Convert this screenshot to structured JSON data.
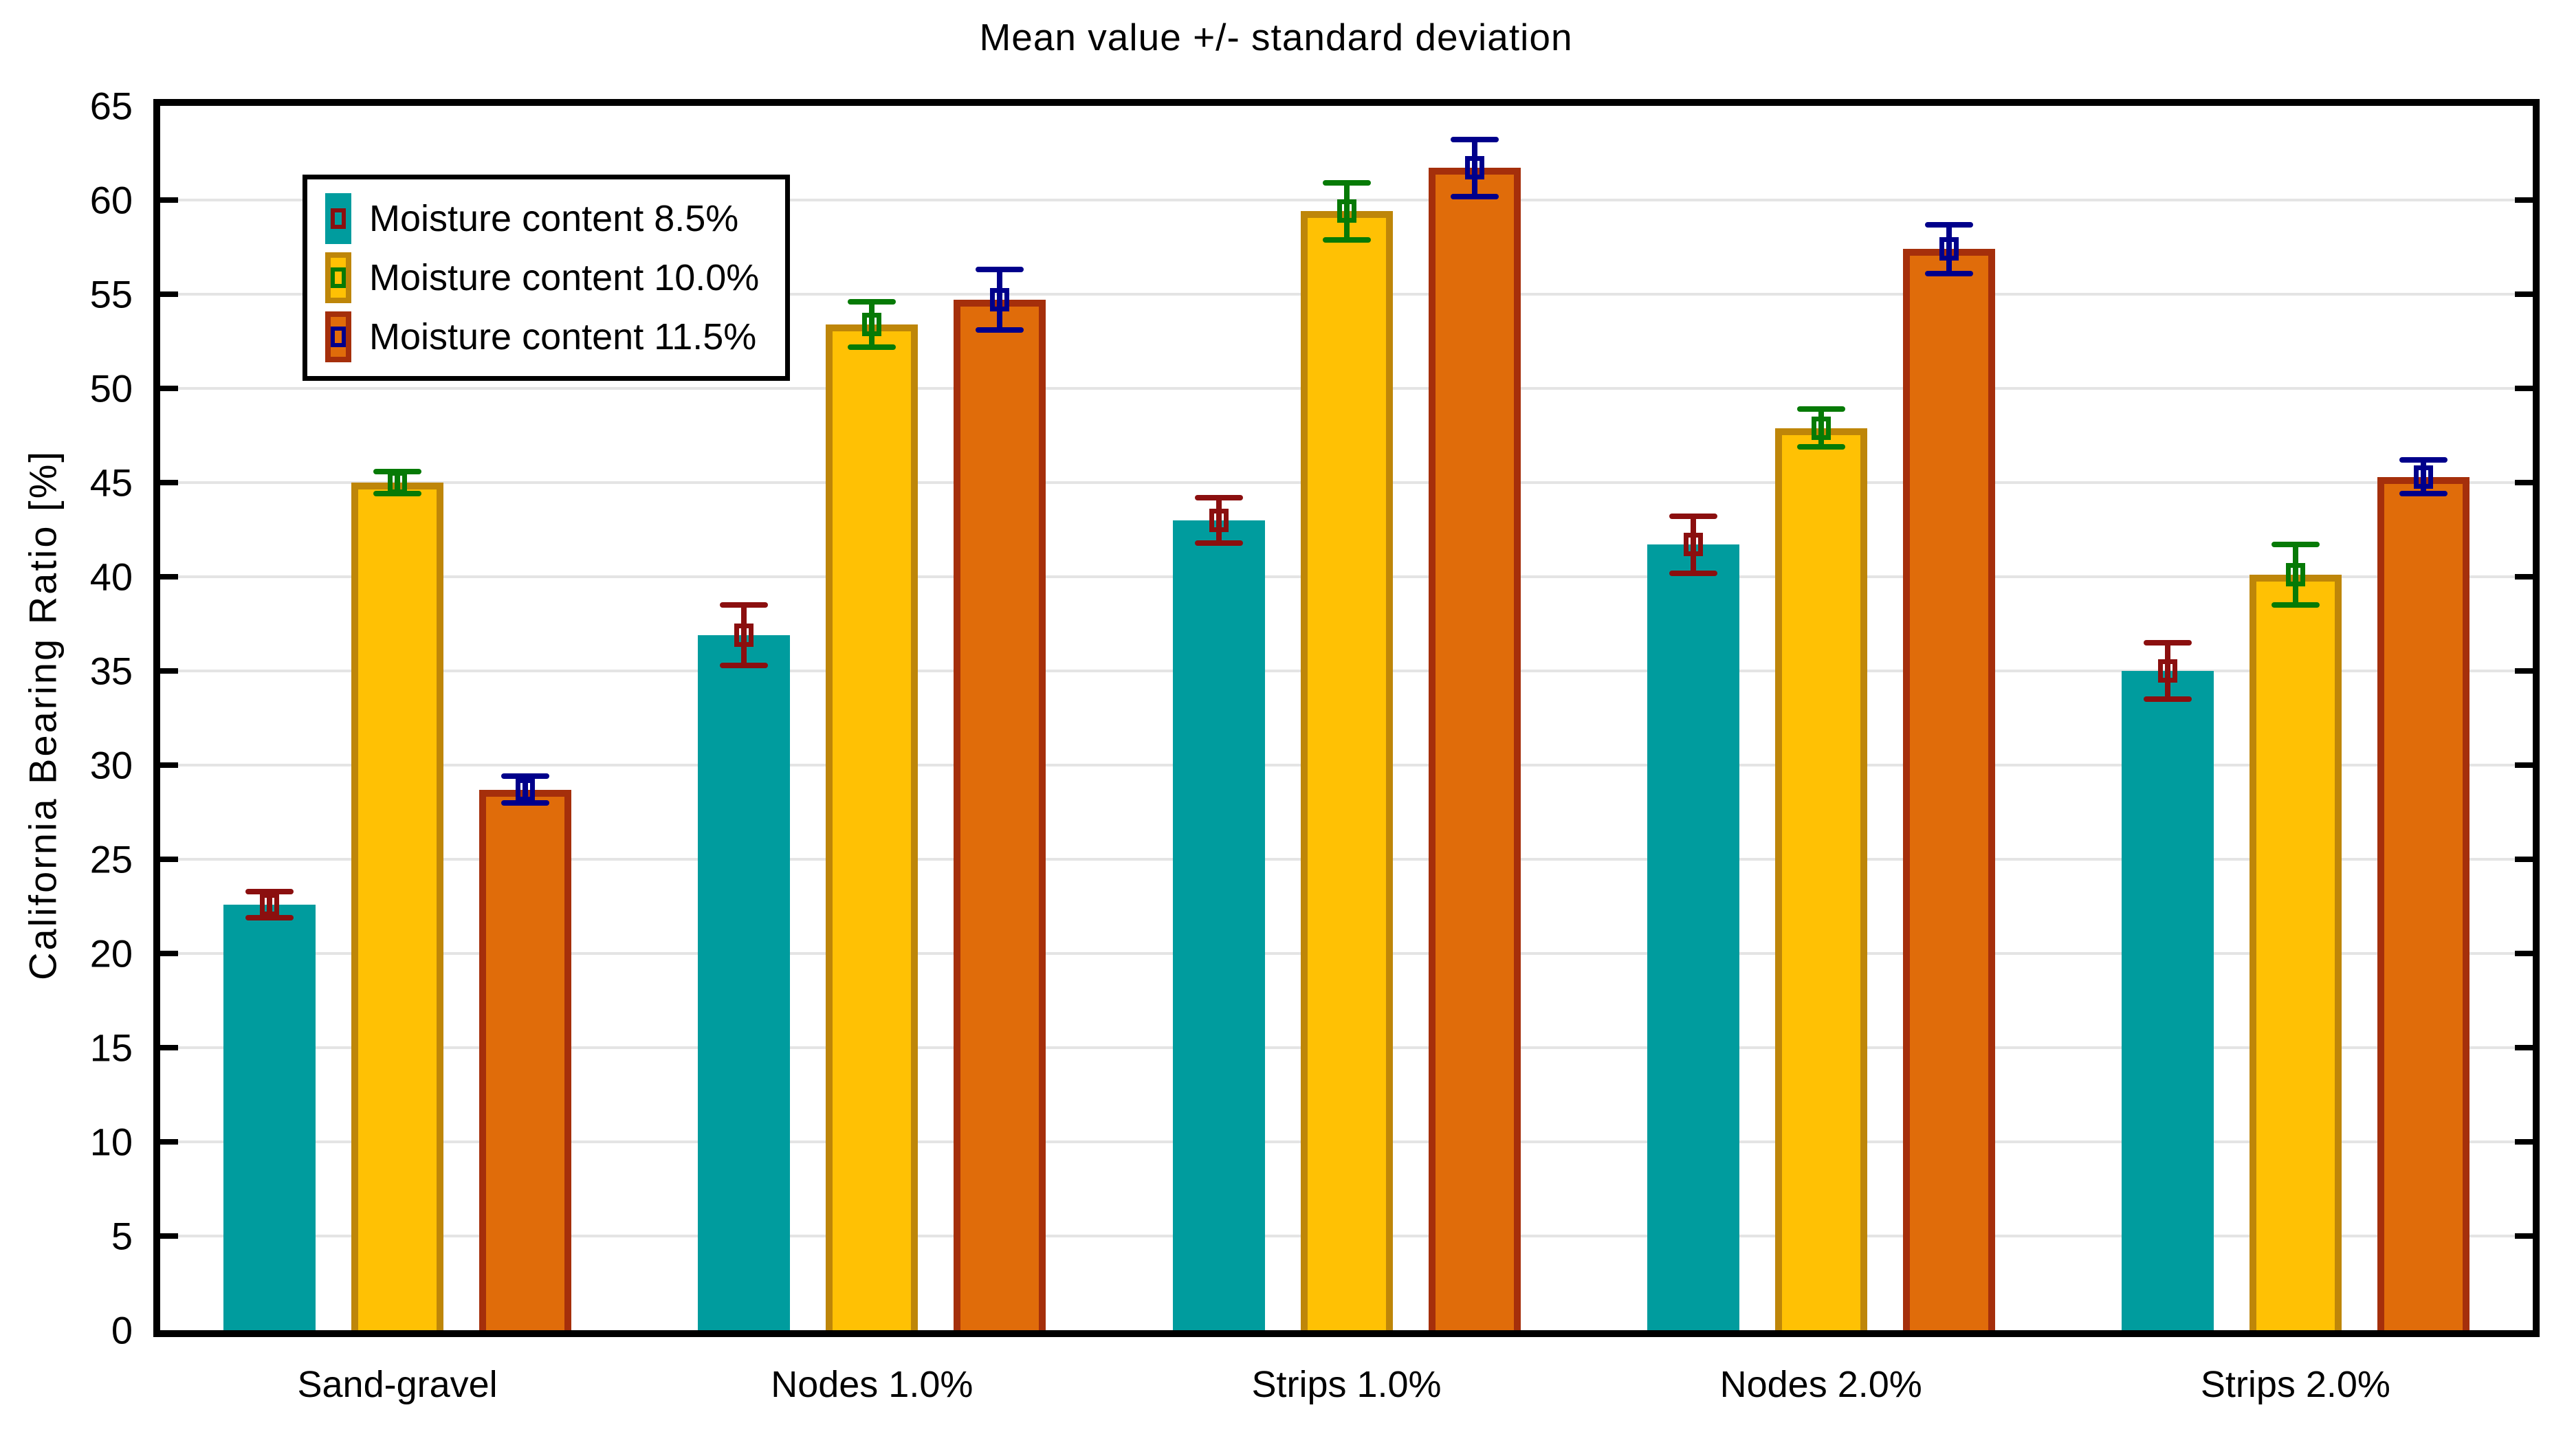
{
  "chart_data": {
    "type": "bar",
    "title": "Mean value +/- standard deviation",
    "ylabel": "California Bearing Ratio  [%]",
    "ylim": [
      0,
      65
    ],
    "ytick_step": 5,
    "grid": true,
    "legend_position": "top-left-inside",
    "categories": [
      "Sand-gravel",
      "Nodes 1.0%",
      "Strips 1.0%",
      "Nodes 2.0%",
      "Strips 2.0%"
    ],
    "series": [
      {
        "name": "Moisture content 8.5%",
        "values": [
          22.6,
          36.9,
          43.0,
          41.7,
          35.0
        ],
        "sd": [
          0.7,
          1.6,
          1.2,
          1.5,
          1.5
        ],
        "bar_fill": "#009C9E",
        "bar_border": "#009C9E",
        "error_color": "#8B0F0F"
      },
      {
        "name": "Moisture content 10.0%",
        "values": [
          45.0,
          53.4,
          59.4,
          47.9,
          40.1
        ],
        "sd": [
          0.6,
          1.2,
          1.5,
          1.0,
          1.6
        ],
        "bar_fill": "#FFC104",
        "bar_border": "#BE8609",
        "error_color": "#067A06"
      },
      {
        "name": "Moisture content 11.5%",
        "values": [
          28.7,
          54.7,
          61.7,
          57.4,
          45.3
        ],
        "sd": [
          0.7,
          1.6,
          1.5,
          1.3,
          0.9
        ],
        "bar_fill": "#E06C0A",
        "bar_border": "#A52F0B",
        "error_color": "#00008B"
      }
    ],
    "axis_color": "#000000",
    "grid_color": "#E4E4E4",
    "background": "#FFFFFF"
  }
}
